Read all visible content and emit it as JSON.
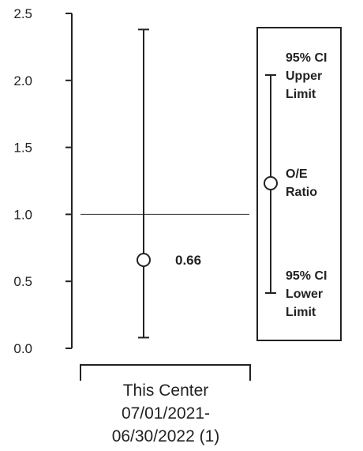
{
  "chart_data": {
    "type": "errorbar",
    "y_ticks": [
      "0.0",
      "0.5",
      "1.0",
      "1.5",
      "2.0",
      "2.5"
    ],
    "ylim": [
      0,
      2.5
    ],
    "reference_line": 1.0,
    "category_label_lines": [
      "This Center",
      "07/01/2021-",
      "06/30/2022 (1)"
    ],
    "points": [
      {
        "estimate": 0.66,
        "lower": 0.08,
        "upper": 2.38,
        "label": "0.66"
      }
    ],
    "legend": {
      "upper_lines": [
        "95% CI",
        "Upper",
        "Limit"
      ],
      "center_lines": [
        "O/E",
        "Ratio"
      ],
      "lower_lines": [
        "95% CI",
        "Lower",
        "Limit"
      ]
    },
    "grid": false
  }
}
